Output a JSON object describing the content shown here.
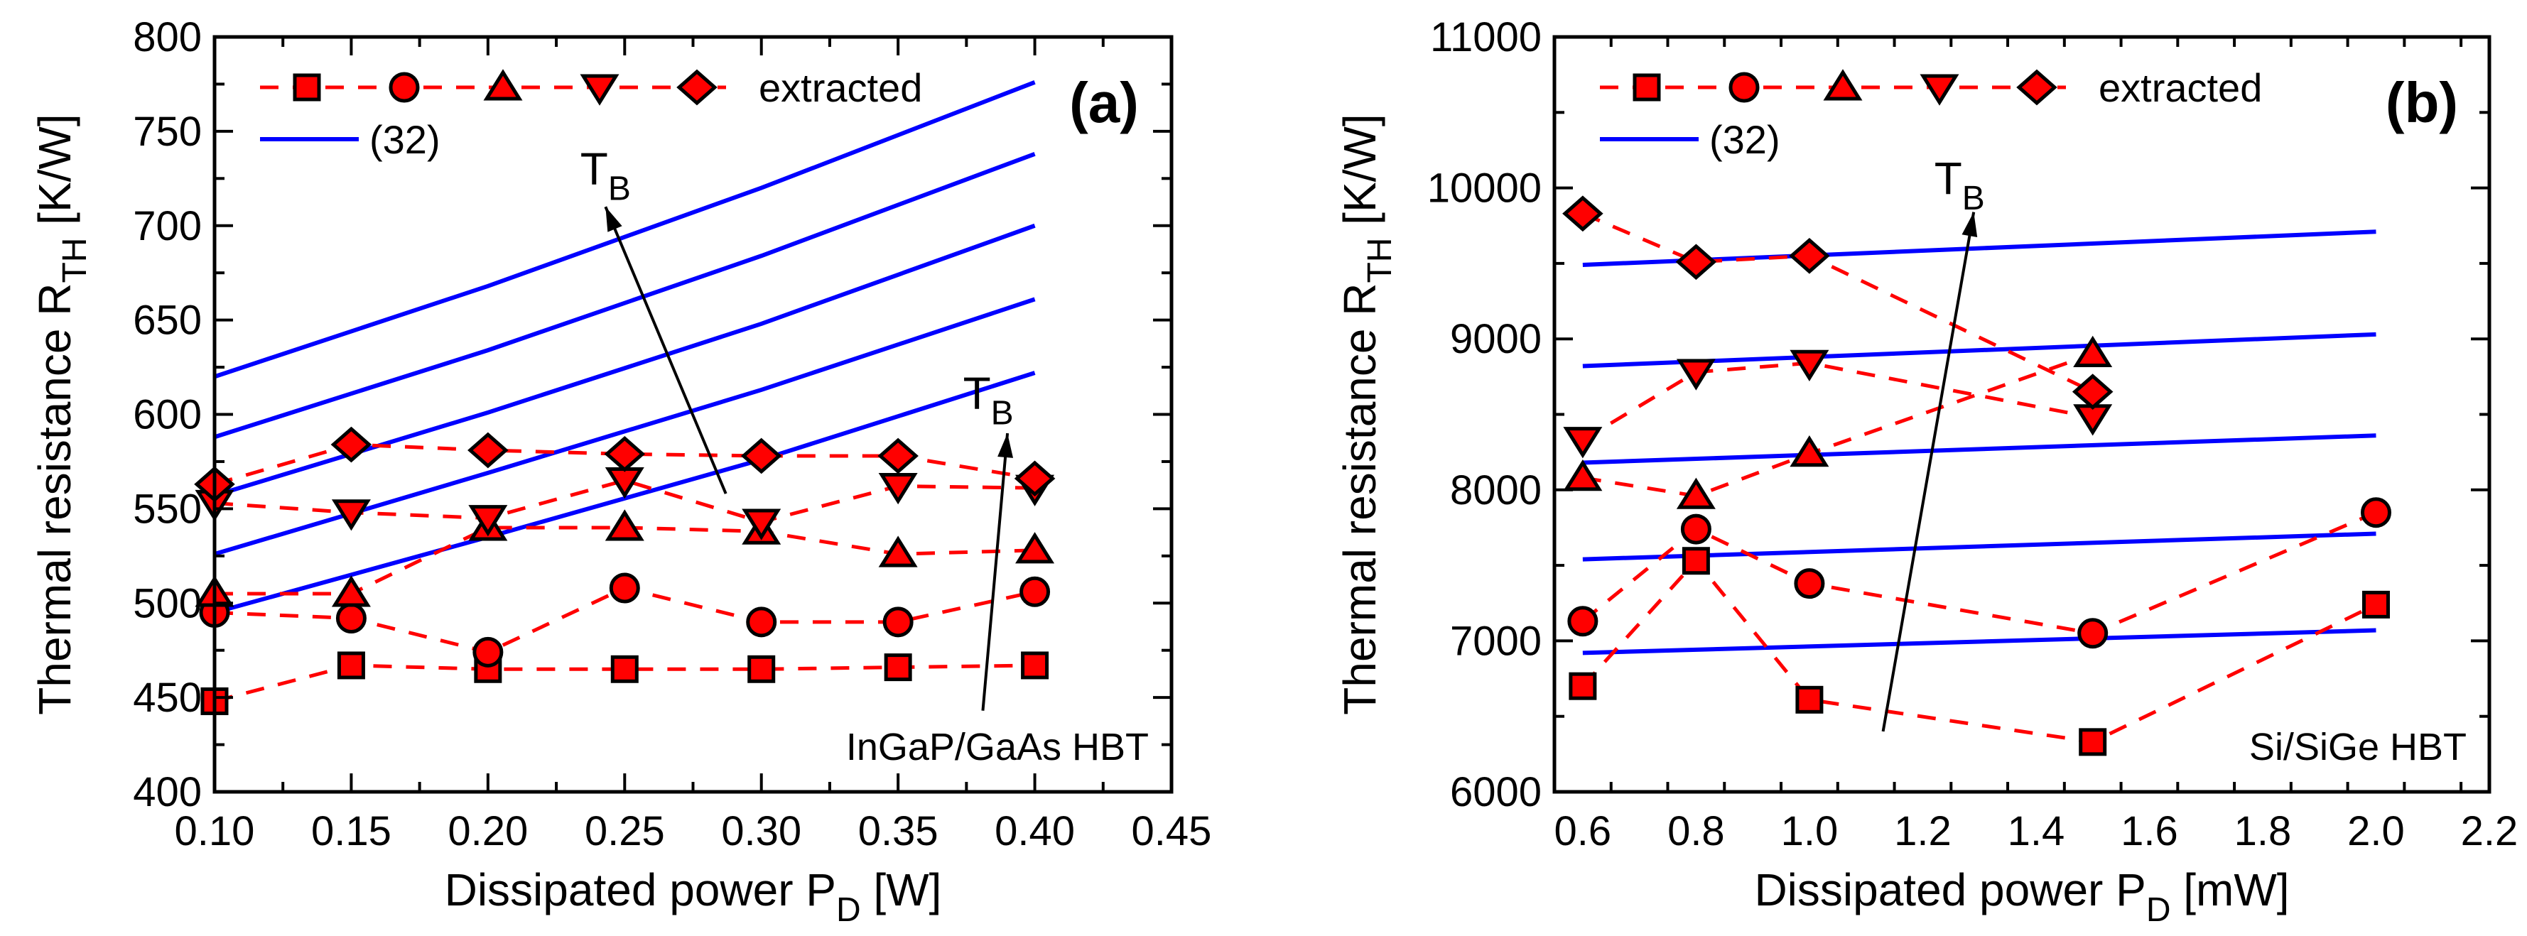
{
  "colors": {
    "extracted": "#ff0000",
    "model": "#0000ff",
    "marker_edge": "#000000",
    "axis": "#000000"
  },
  "chart_data": [
    {
      "type": "line",
      "panel_label": "(a)",
      "device_label": "InGaP/GaAs HBT",
      "xlabel": {
        "main": "Dissipated power P",
        "sub": "D",
        "unit": " [W]"
      },
      "ylabel": {
        "main": "Thermal resistance R",
        "sub": "TH",
        "unit": " [K/W]"
      },
      "xlim": [
        0.1,
        0.45
      ],
      "ylim": [
        400,
        800
      ],
      "xticks": [
        0.1,
        0.15,
        0.2,
        0.25,
        0.3,
        0.35,
        0.4,
        0.45
      ],
      "xtick_labels": [
        "0.10",
        "0.15",
        "0.20",
        "0.25",
        "0.30",
        "0.35",
        "0.40",
        "0.45"
      ],
      "xminor": 0.025,
      "yticks": [
        400,
        450,
        500,
        550,
        600,
        650,
        700,
        750,
        800
      ],
      "ytick_labels": [
        "400",
        "450",
        "500",
        "550",
        "600",
        "650",
        "700",
        "750",
        "800"
      ],
      "yminor": 25,
      "legend": {
        "extracted_label": "extracted",
        "model_label": "(32)",
        "placement": "top-left"
      },
      "extracted_x": [
        0.1,
        0.15,
        0.2,
        0.25,
        0.3,
        0.35,
        0.4
      ],
      "extracted": [
        {
          "marker": "square",
          "values": [
            448,
            467,
            465,
            465,
            465,
            466,
            467
          ]
        },
        {
          "marker": "circle",
          "values": [
            495,
            492,
            474,
            508,
            490,
            490,
            506
          ]
        },
        {
          "marker": "triangle-up",
          "values": [
            505,
            505,
            540,
            540,
            538,
            526,
            528
          ]
        },
        {
          "marker": "triangle-down",
          "values": [
            553,
            548,
            545,
            565,
            543,
            562,
            561
          ]
        },
        {
          "marker": "diamond",
          "values": [
            563,
            584,
            581,
            579,
            578,
            578,
            566
          ]
        }
      ],
      "model_x": [
        0.1,
        0.2,
        0.3,
        0.4
      ],
      "model": [
        [
          495,
          535,
          576,
          622
        ],
        [
          526,
          569,
          613,
          661
        ],
        [
          557,
          601,
          648,
          700
        ],
        [
          588,
          634,
          684,
          738
        ],
        [
          620,
          668,
          720,
          776
        ]
      ],
      "annotations": [
        {
          "text": "T",
          "sub": "B",
          "from": [
            0.287,
            558
          ],
          "to": [
            0.243,
            710
          ],
          "label_at": [
            0.243,
            722
          ]
        },
        {
          "text": "T",
          "sub": "B",
          "from": [
            0.381,
            443
          ],
          "to": [
            0.39,
            590
          ],
          "label_at": [
            0.383,
            603
          ]
        }
      ]
    },
    {
      "type": "line",
      "panel_label": "(b)",
      "device_label": "Si/SiGe HBT",
      "xlabel": {
        "main": "Dissipated power P",
        "sub": "D",
        "unit": " [mW]"
      },
      "ylabel": {
        "main": "Thermal resistance R",
        "sub": "TH",
        "unit": " [K/W]"
      },
      "xlim": [
        0.55,
        2.2
      ],
      "ylim": [
        6000,
        11000
      ],
      "xticks": [
        0.6,
        0.8,
        1.0,
        1.2,
        1.4,
        1.6,
        1.8,
        2.0,
        2.2
      ],
      "xtick_labels": [
        "0.6",
        "0.8",
        "1.0",
        "1.2",
        "1.4",
        "1.6",
        "1.8",
        "2.0",
        "2.2"
      ],
      "xminor": 0.1,
      "yticks": [
        6000,
        7000,
        8000,
        9000,
        10000,
        11000
      ],
      "ytick_labels": [
        "6000",
        "7000",
        "8000",
        "9000",
        "10000",
        "11000"
      ],
      "yminor": 500,
      "legend": {
        "extracted_label": "extracted",
        "model_label": "(32)",
        "placement": "top-left"
      },
      "extracted_x": [
        0.6,
        0.8,
        1.0,
        1.5,
        2.0
      ],
      "extracted": [
        {
          "marker": "square",
          "values": [
            6700,
            7530,
            6610,
            6330,
            7240
          ]
        },
        {
          "marker": "circle",
          "values": [
            7130,
            7740,
            7380,
            7050,
            7850
          ]
        },
        {
          "marker": "triangle-up",
          "values": [
            8080,
            7960,
            8240,
            8900,
            null
          ]
        },
        {
          "marker": "triangle-down",
          "values": [
            8330,
            8780,
            8840,
            8480,
            null
          ]
        },
        {
          "marker": "diamond",
          "values": [
            9830,
            9510,
            9550,
            8650,
            null
          ]
        }
      ],
      "model_x": [
        0.6,
        2.0
      ],
      "model": [
        [
          6920,
          7070
        ],
        [
          7540,
          7710
        ],
        [
          8180,
          8360
        ],
        [
          8820,
          9030
        ],
        [
          9490,
          9710
        ]
      ],
      "annotations": [
        {
          "text": "T",
          "sub": "B",
          "from": [
            1.13,
            6400
          ],
          "to": [
            1.29,
            9840
          ],
          "label_at": [
            1.265,
            9960
          ]
        }
      ]
    }
  ]
}
